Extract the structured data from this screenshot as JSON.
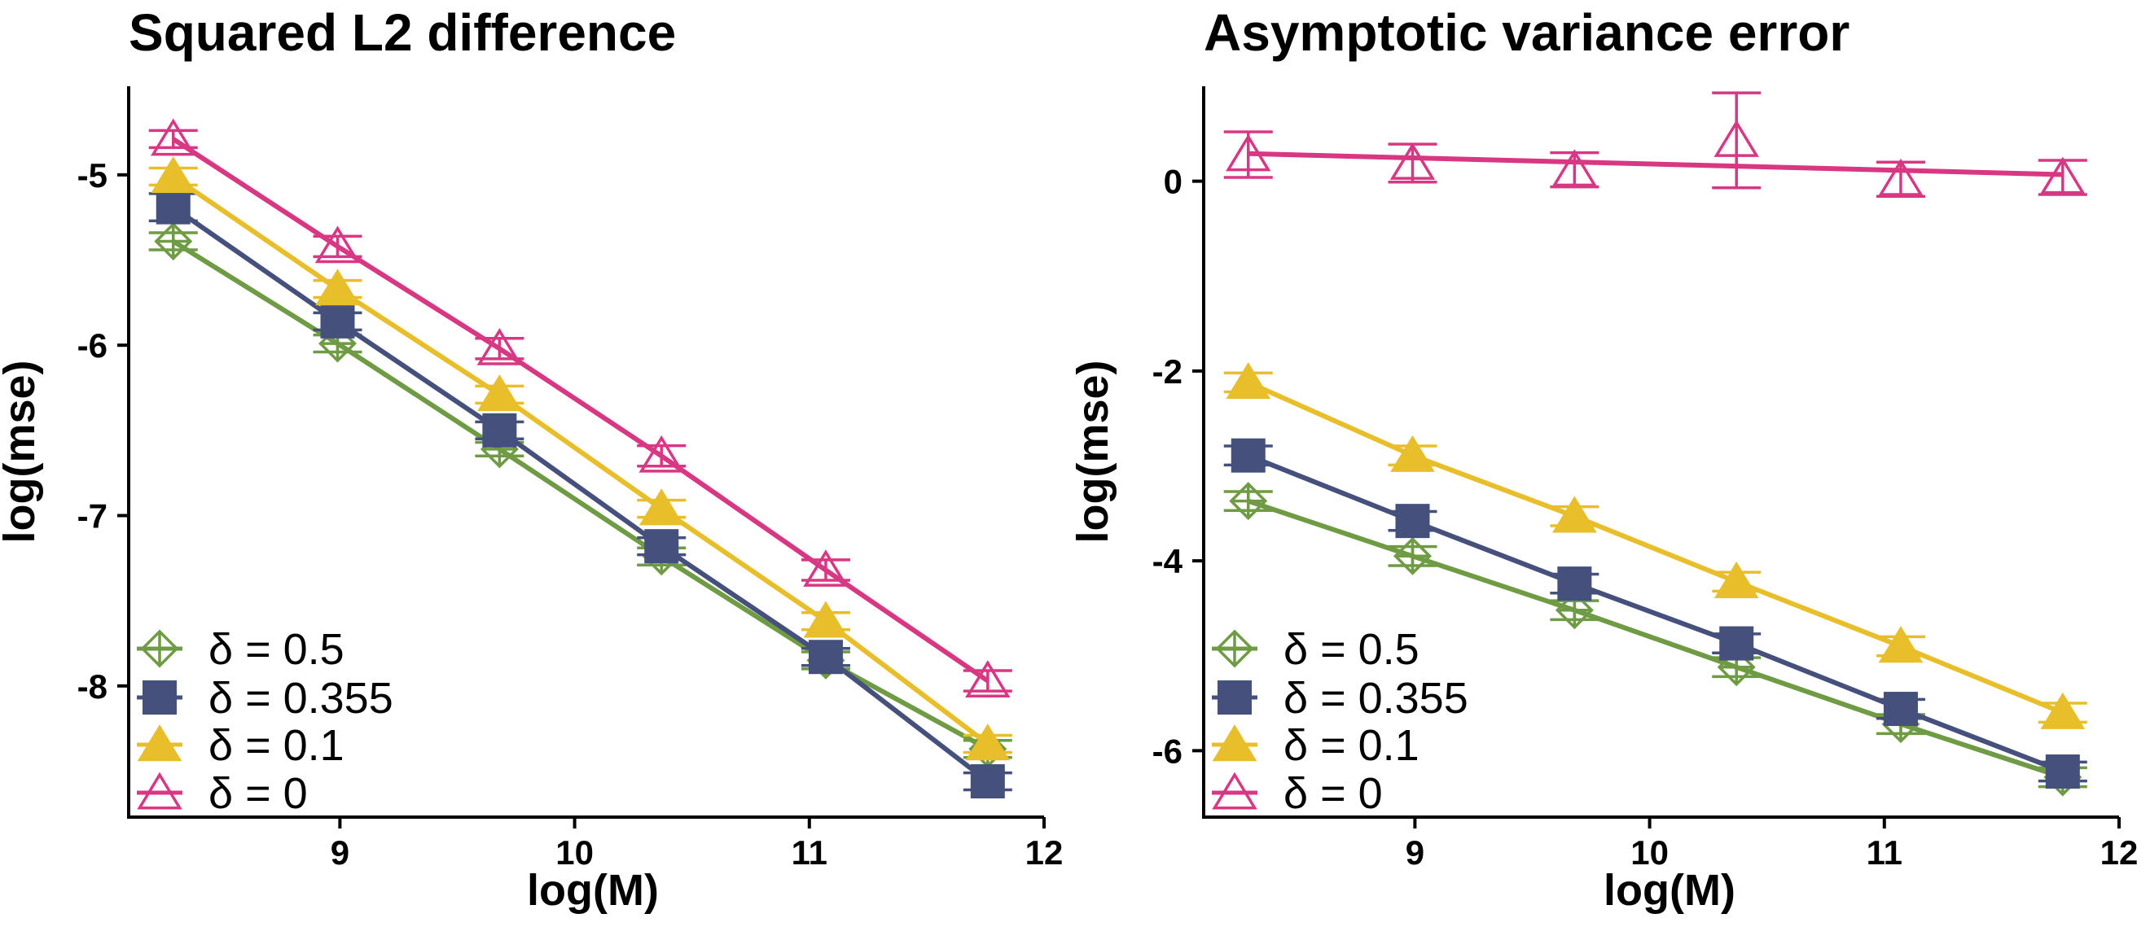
{
  "chart_data": [
    {
      "type": "line",
      "title": "Squared L2 difference",
      "xlabel": "log(M)",
      "ylabel": "log(mse)",
      "xlim": [
        8.1,
        12.0
      ],
      "ylim": [
        -8.77,
        -4.48
      ],
      "xticks": [
        9,
        10,
        11,
        12
      ],
      "xtick_labels": [
        "9",
        "10",
        "11",
        "12"
      ],
      "yticks": [
        -8,
        -7,
        -6,
        -5
      ],
      "ytick_labels": [
        "-8",
        "-7",
        "-6",
        "-5"
      ],
      "grid": false,
      "legend_position": "bottom-left",
      "x": [
        8.29,
        8.99,
        9.68,
        10.37,
        11.07,
        11.76
      ],
      "series": [
        {
          "name": "δ = 0.5",
          "label_symbol": "δ",
          "label_value": "= 0.5",
          "marker": "diamond-plus",
          "color": "#6E9B43",
          "values": [
            -5.39,
            -5.99,
            -6.61,
            -7.24,
            -7.85,
            -8.37
          ],
          "errors": [
            0.05,
            0.05,
            0.04,
            0.05,
            0.05,
            0.05
          ]
        },
        {
          "name": "δ = 0.355",
          "label_symbol": "δ",
          "label_value": "= 0.355",
          "marker": "square",
          "color": "#45507C",
          "values": [
            -5.19,
            -5.86,
            -6.5,
            -7.18,
            -7.83,
            -8.56
          ],
          "errors": [
            0.08,
            0.05,
            0.05,
            0.05,
            0.05,
            0.05
          ]
        },
        {
          "name": "δ = 0.1",
          "label_symbol": "δ",
          "label_value": "= 0.1",
          "marker": "triangle-filled",
          "color": "#E8BE2A",
          "values": [
            -5.01,
            -5.67,
            -6.29,
            -6.96,
            -7.62,
            -8.34
          ],
          "errors": [
            0.05,
            0.05,
            0.05,
            0.05,
            0.05,
            0.05
          ]
        },
        {
          "name": "δ = 0",
          "label_symbol": "δ",
          "label_value": "= 0",
          "marker": "triangle-open",
          "color": "#D83883",
          "values": [
            -4.79,
            -5.42,
            -6.02,
            -6.65,
            -7.32,
            -7.97
          ],
          "errors": [
            0.05,
            0.06,
            0.06,
            0.06,
            0.06,
            0.06
          ]
        }
      ]
    },
    {
      "type": "line",
      "title": "Asymptotic variance error",
      "xlabel": "log(M)",
      "ylabel": "log(mse)",
      "xlim": [
        8.1,
        12.0
      ],
      "ylim": [
        -6.7,
        1.0
      ],
      "xticks": [
        9,
        10,
        11,
        12
      ],
      "xtick_labels": [
        "9",
        "10",
        "11",
        "12"
      ],
      "yticks": [
        -6,
        -4,
        -2,
        0
      ],
      "ytick_labels": [
        "-6",
        "-4",
        "-2",
        "0"
      ],
      "grid": false,
      "legend_position": "bottom-left",
      "x": [
        8.29,
        8.99,
        9.68,
        10.37,
        11.07,
        11.76
      ],
      "series": [
        {
          "name": "δ = 0.5",
          "label_symbol": "δ",
          "label_value": "= 0.5",
          "marker": "diamond-plus",
          "color": "#6E9B43",
          "values": [
            -3.37,
            -3.95,
            -4.52,
            -5.12,
            -5.72,
            -6.28
          ],
          "errors": [
            0.1,
            0.1,
            0.1,
            0.1,
            0.1,
            0.1
          ]
        },
        {
          "name": "δ = 0.355",
          "label_symbol": "δ",
          "label_value": "= 0.355",
          "marker": "square",
          "color": "#45507C",
          "values": [
            -2.89,
            -3.58,
            -4.24,
            -4.87,
            -5.56,
            -6.22
          ],
          "errors": [
            0.1,
            0.1,
            0.1,
            0.1,
            0.1,
            0.1
          ]
        },
        {
          "name": "δ = 0.1",
          "label_symbol": "δ",
          "label_value": "= 0.1",
          "marker": "triangle-filled",
          "color": "#E8BE2A",
          "values": [
            -2.12,
            -2.89,
            -3.53,
            -4.22,
            -4.9,
            -5.6
          ],
          "errors": [
            0.1,
            0.1,
            0.1,
            0.1,
            0.1,
            0.1
          ]
        },
        {
          "name": "δ = 0",
          "label_symbol": "δ",
          "label_value": "= 0",
          "marker": "triangle-open",
          "color": "#D83883",
          "values": [
            0.28,
            0.19,
            0.12,
            0.43,
            0.02,
            0.04
          ],
          "errors": [
            0.24,
            0.2,
            0.18,
            0.5,
            0.18,
            0.18
          ],
          "trend": [
            0.29,
            0.07
          ]
        }
      ]
    }
  ]
}
